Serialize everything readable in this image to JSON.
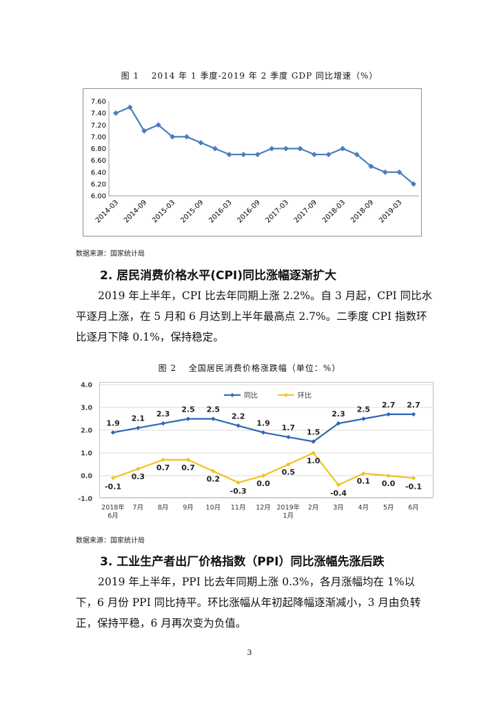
{
  "figure1": {
    "title": "图 1　 2014 年 1 季度-2019 年 2 季度 GDP 同比增速（%）",
    "source": "数据来源：国家统计局"
  },
  "section2": {
    "heading": "2. 居民消费价格水平(CPI)同比涨幅逐渐扩大",
    "paragraph": "2019 年上半年，CPI 比去年同期上涨 2.2%。自 3 月起，CPI 同比水平逐月上涨，在 5 月和 6 月达到上半年最高点 2.7%。二季度 CPI 指数环比逐月下降 0.1%，保持稳定。"
  },
  "figure2": {
    "title": "图 2　 全国居民消费价格涨跌幅（单位：%）",
    "source": "数据来源：国家统计局"
  },
  "section3": {
    "heading": "3. 工业生产者出厂价格指数（PPI）同比涨幅先涨后跌",
    "paragraph": "2019 年上半年，PPI 比去年同期上涨 0.3%，各月涨幅均在 1%以下，6 月份 PPI 同比持平。环比涨幅从年初起降幅逐渐减小，3 月由负转正，保持平稳，6 月再次变为负值。"
  },
  "page_number": "3",
  "chart_data": [
    {
      "type": "line",
      "title": "",
      "x": [
        "2014-03",
        "2014-06",
        "2014-09",
        "2014-12",
        "2015-03",
        "2015-06",
        "2015-09",
        "2015-12",
        "2016-03",
        "2016-06",
        "2016-09",
        "2016-12",
        "2017-03",
        "2017-06",
        "2017-09",
        "2017-12",
        "2018-03",
        "2018-06",
        "2018-09",
        "2018-12",
        "2019-03",
        "2019-06"
      ],
      "x_tick_labels": [
        "2014-03",
        "2014-09",
        "2015-03",
        "2015-09",
        "2016-03",
        "2016-09",
        "2017-03",
        "2017-09",
        "2018-03",
        "2018-09",
        "2019-03"
      ],
      "series": [
        {
          "name": "",
          "color": "#4a7ebb",
          "values": [
            7.4,
            7.5,
            7.1,
            7.2,
            7.0,
            7.0,
            6.9,
            6.8,
            6.7,
            6.7,
            6.7,
            6.8,
            6.8,
            6.8,
            6.7,
            6.7,
            6.8,
            6.7,
            6.5,
            6.4,
            6.4,
            6.2
          ]
        }
      ],
      "y_ticks": [
        "7.60",
        "7.40",
        "7.20",
        "7.00",
        "6.80",
        "6.60",
        "6.40",
        "6.20",
        "6.00"
      ],
      "ylim": [
        6.0,
        7.6
      ],
      "grid": false,
      "legend": "none"
    },
    {
      "type": "line",
      "title": "",
      "categories": [
        "2018年6月",
        "7月",
        "8月",
        "9月",
        "10月",
        "11月",
        "12月",
        "2019年1月",
        "2月",
        "3月",
        "4月",
        "5月",
        "6月"
      ],
      "series": [
        {
          "name": "同比",
          "color": "#2e63b5",
          "values": [
            1.9,
            2.1,
            2.3,
            2.5,
            2.5,
            2.2,
            1.9,
            1.7,
            1.5,
            2.3,
            2.5,
            2.7,
            2.7
          ],
          "labels": [
            "1.9",
            "2.1",
            "2.3",
            "2.5",
            "2.5",
            "2.2",
            "1.9",
            "1.7",
            "1.5",
            "2.3",
            "2.5",
            "2.7",
            "2.7"
          ]
        },
        {
          "name": "环比",
          "color": "#f2c11c",
          "values": [
            -0.1,
            0.3,
            0.7,
            0.7,
            0.2,
            -0.3,
            0.0,
            0.5,
            1.0,
            -0.4,
            0.1,
            0.0,
            -0.1
          ],
          "labels": [
            "-0.1",
            "0.3",
            "0.7",
            "0.7",
            "0.2",
            "-0.3",
            "0.0",
            "0.5",
            "1.0",
            "-0.4",
            "0.1",
            "0.0",
            "-0.1"
          ]
        }
      ],
      "y_ticks": [
        "4.0",
        "3.0",
        "2.0",
        "1.0",
        "0.0",
        "-1.0"
      ],
      "ylim": [
        -1.0,
        4.0
      ],
      "grid": true,
      "legend": "top-left"
    }
  ]
}
